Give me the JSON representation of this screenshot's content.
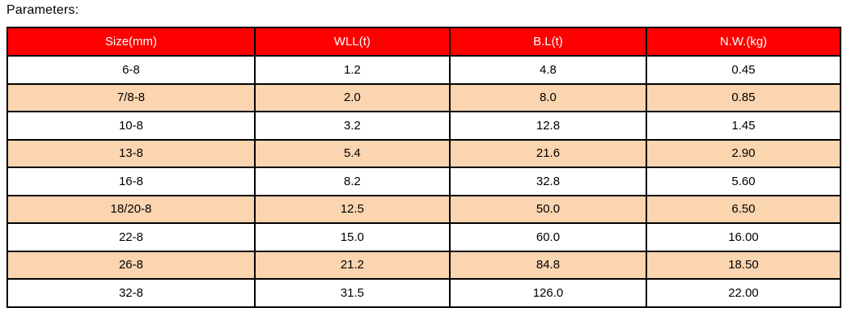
{
  "page": {
    "title": "Parameters:"
  },
  "table": {
    "headers": [
      "Size(mm)",
      "WLL(t)",
      "B.L(t)",
      "N.W.(kg)"
    ],
    "rows": [
      [
        "6-8",
        "1.2",
        "4.8",
        "0.45"
      ],
      [
        "7/8-8",
        "2.0",
        "8.0",
        "0.85"
      ],
      [
        "10-8",
        "3.2",
        "12.8",
        "1.45"
      ],
      [
        "13-8",
        "5.4",
        "21.6",
        "2.90"
      ],
      [
        "16-8",
        "8.2",
        "32.8",
        "5.60"
      ],
      [
        "18/20-8",
        "12.5",
        "50.0",
        "6.50"
      ],
      [
        "22-8",
        "15.0",
        "60.0",
        "16.00"
      ],
      [
        "26-8",
        "21.2",
        "84.8",
        "18.50"
      ],
      [
        "32-8",
        "31.5",
        "126.0",
        "22.00"
      ]
    ]
  },
  "colors": {
    "header_bg": "#fe0000",
    "header_text": "#ffffff",
    "row_bg": "#ffffff",
    "row_alt_bg": "#fbd5b0",
    "border": "#000000",
    "text": "#000000"
  }
}
